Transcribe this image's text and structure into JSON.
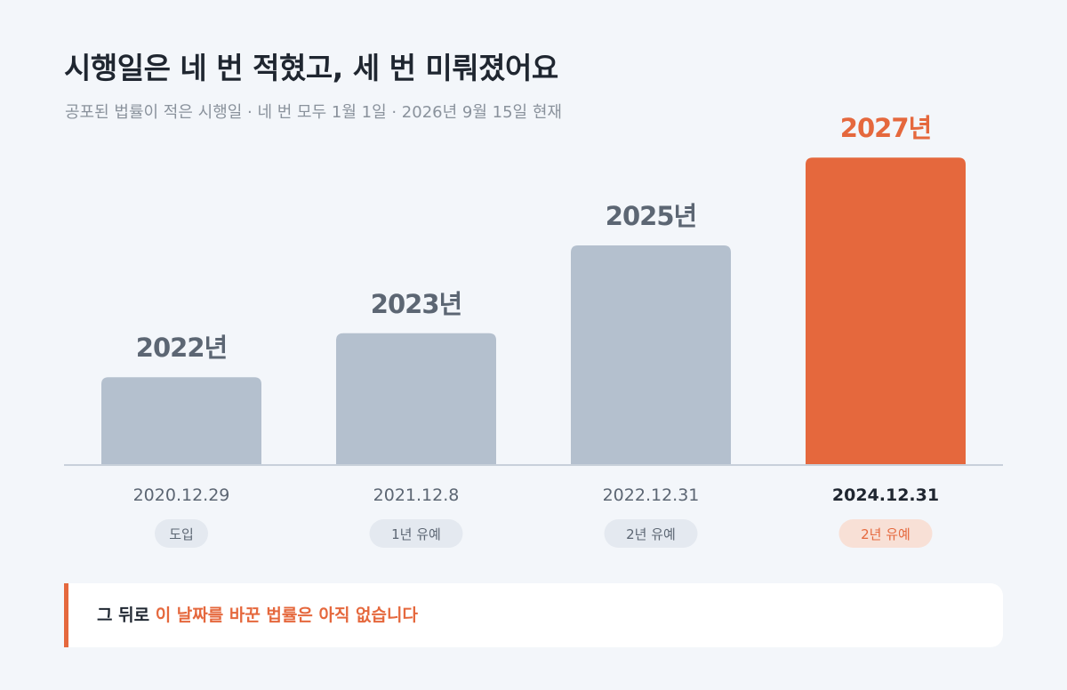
{
  "header": {
    "title": "시행일은 네 번 적혔고, 세 번 미뤄졌어요",
    "subtitle": "공포된 법률이 적은 시행일 · 네 번 모두 1월 1일 · 2026년 9월 15일 현재"
  },
  "chart_data": {
    "type": "bar",
    "title": "시행일은 네 번 적혔고, 세 번 미뤄졌어요",
    "subtitle": "공포된 법률이 적은 시행일 · 네 번 모두 1월 1일 · 2026년 9월 15일 현재",
    "xlabel": "",
    "ylabel": "",
    "categories": [
      "2020.12.29",
      "2021.12.8",
      "2022.12.31",
      "2024.12.31"
    ],
    "values": [
      2022,
      2023,
      2025,
      2027
    ],
    "value_labels": [
      "2022년",
      "2023년",
      "2025년",
      "2027년"
    ],
    "badges": [
      "도입",
      "1년 유예",
      "2년 유예",
      "2년 유예"
    ],
    "highlight_index": 3,
    "ylim": [
      2020,
      2027
    ],
    "grid": false,
    "colors": {
      "bar": "#b4c0ce",
      "highlight": "#e5683d",
      "value_label": "#5c6673",
      "category_label": "#5c6673",
      "category_label_highlight": "#1f2630",
      "badge_bg": "#e4e9f0",
      "badge_text": "#5c6673",
      "badge_bg_highlight": "#f8e0d6",
      "badge_text_highlight": "#e5683d",
      "baseline": "#c8d0da"
    }
  },
  "note": {
    "prefix": "그 뒤로",
    "highlight": "이 날짜를 바꾼 법률은 아직 없습니다"
  }
}
